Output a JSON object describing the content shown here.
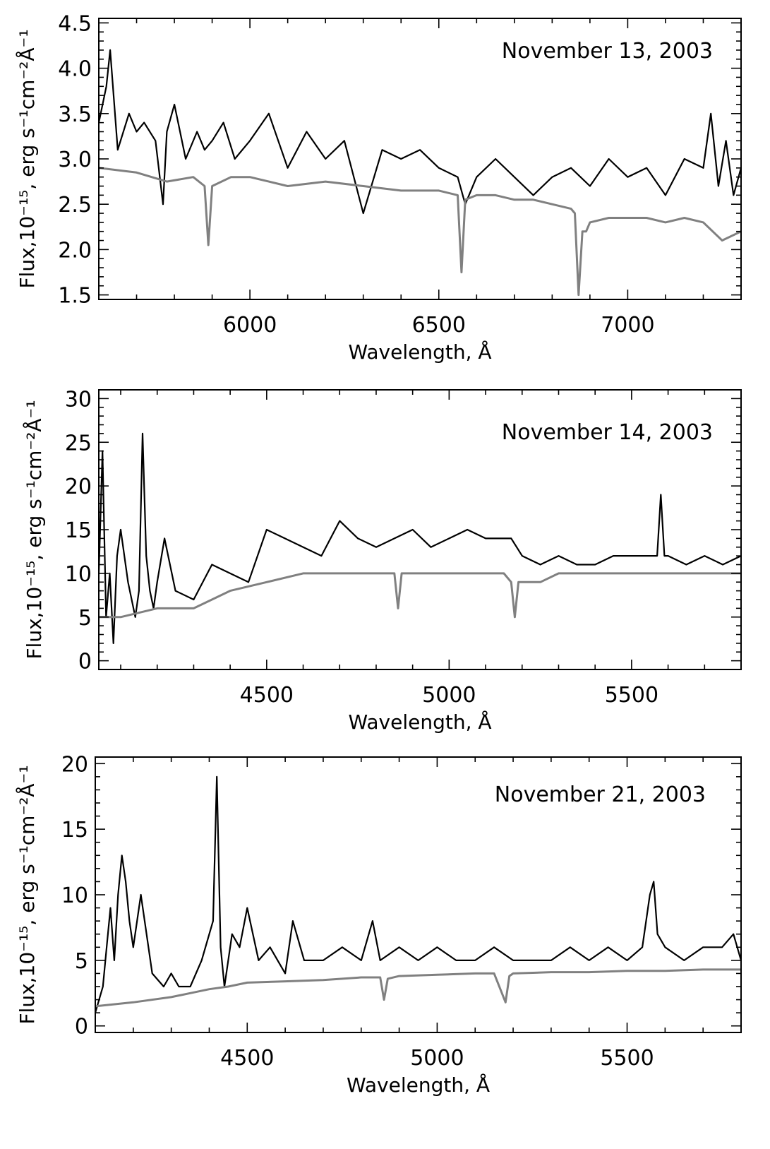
{
  "chart_data": [
    {
      "type": "line",
      "title": "November 13, 2003",
      "xlabel": "Wavelength, Å",
      "ylabel": "Flux,10⁻¹⁵, erg s⁻¹cm⁻²Å⁻¹",
      "xlim": [
        5600,
        7300
      ],
      "ylim": [
        1.45,
        4.55
      ],
      "xticks": [
        6000,
        6500,
        7000
      ],
      "yticks": [
        1.5,
        2.0,
        2.5,
        3.0,
        3.5,
        4.0,
        4.5
      ],
      "ytick_decimals": 1,
      "series": [
        {
          "color": "#000000",
          "x": [
            5600,
            5620,
            5630,
            5650,
            5680,
            5700,
            5720,
            5750,
            5770,
            5780,
            5800,
            5830,
            5860,
            5880,
            5900,
            5930,
            5960,
            6000,
            6050,
            6100,
            6150,
            6200,
            6250,
            6300,
            6350,
            6400,
            6450,
            6500,
            6550,
            6570,
            6600,
            6650,
            6700,
            6750,
            6800,
            6850,
            6900,
            6950,
            7000,
            7050,
            7100,
            7150,
            7200,
            7220,
            7240,
            7260,
            7280,
            7300
          ],
          "y": [
            3.4,
            3.8,
            4.2,
            3.1,
            3.5,
            3.3,
            3.4,
            3.2,
            2.5,
            3.3,
            3.6,
            3.0,
            3.3,
            3.1,
            3.2,
            3.4,
            3.0,
            3.2,
            3.5,
            2.9,
            3.3,
            3.0,
            3.2,
            2.4,
            3.1,
            3.0,
            3.1,
            2.9,
            2.8,
            2.5,
            2.8,
            3.0,
            2.8,
            2.6,
            2.8,
            2.9,
            2.7,
            3.0,
            2.8,
            2.9,
            2.6,
            3.0,
            2.9,
            3.5,
            2.7,
            3.2,
            2.6,
            2.9
          ]
        },
        {
          "color": "#808080",
          "x": [
            5600,
            5700,
            5780,
            5850,
            5880,
            5890,
            5900,
            5950,
            6000,
            6050,
            6100,
            6200,
            6300,
            6400,
            6500,
            6550,
            6560,
            6570,
            6600,
            6650,
            6700,
            6750,
            6800,
            6850,
            6860,
            6870,
            6880,
            6890,
            6900,
            6950,
            7000,
            7050,
            7100,
            7150,
            7200,
            7250,
            7300
          ],
          "y": [
            2.9,
            2.85,
            2.75,
            2.8,
            2.7,
            2.05,
            2.7,
            2.8,
            2.8,
            2.75,
            2.7,
            2.75,
            2.7,
            2.65,
            2.65,
            2.6,
            1.75,
            2.55,
            2.6,
            2.6,
            2.55,
            2.55,
            2.5,
            2.45,
            2.4,
            1.5,
            2.2,
            2.2,
            2.3,
            2.35,
            2.35,
            2.35,
            2.3,
            2.35,
            2.3,
            2.1,
            2.2
          ]
        }
      ]
    },
    {
      "type": "line",
      "title": "November 14, 2003",
      "xlabel": "Wavelength, Å",
      "ylabel": "Flux,10⁻¹⁵, erg s⁻¹cm⁻²Å⁻¹",
      "xlim": [
        4040,
        5800
      ],
      "ylim": [
        -1,
        31
      ],
      "xticks": [
        4500,
        5000,
        5500
      ],
      "yticks": [
        0,
        5,
        10,
        15,
        20,
        25,
        30
      ],
      "ytick_decimals": 0,
      "series": [
        {
          "color": "#000000",
          "x": [
            4040,
            4050,
            4060,
            4070,
            4080,
            4090,
            4100,
            4120,
            4140,
            4150,
            4160,
            4170,
            4180,
            4190,
            4200,
            4220,
            4250,
            4300,
            4350,
            4400,
            4450,
            4500,
            4550,
            4600,
            4650,
            4700,
            4750,
            4800,
            4850,
            4900,
            4950,
            5000,
            5050,
            5100,
            5150,
            5170,
            5200,
            5250,
            5300,
            5350,
            5400,
            5450,
            5500,
            5550,
            5570,
            5580,
            5590,
            5600,
            5650,
            5700,
            5750,
            5800
          ],
          "y": [
            10,
            24,
            5,
            10,
            2,
            12,
            15,
            9,
            5,
            8,
            26,
            12,
            8,
            6,
            9,
            14,
            8,
            7,
            11,
            10,
            9,
            15,
            14,
            13,
            12,
            16,
            14,
            13,
            14,
            15,
            13,
            14,
            15,
            14,
            14,
            14,
            12,
            11,
            12,
            11,
            11,
            12,
            12,
            12,
            12,
            19,
            12,
            12,
            11,
            12,
            11,
            12
          ]
        },
        {
          "color": "#808080",
          "x": [
            4040,
            4100,
            4200,
            4300,
            4350,
            4400,
            4500,
            4600,
            4700,
            4800,
            4850,
            4860,
            4870,
            4900,
            5000,
            5100,
            5150,
            5170,
            5180,
            5190,
            5250,
            5300,
            5400,
            5500,
            5600,
            5700,
            5800
          ],
          "y": [
            5,
            5,
            6,
            6,
            7,
            8,
            9,
            10,
            10,
            10,
            10,
            6,
            10,
            10,
            10,
            10,
            10,
            9,
            5,
            9,
            9,
            10,
            10,
            10,
            10,
            10,
            10
          ]
        }
      ]
    },
    {
      "type": "line",
      "title": "November 21, 2003",
      "xlabel": "Wavelength, Å",
      "ylabel": "Flux,10⁻¹⁵, erg s⁻¹cm⁻²Å⁻¹",
      "xlim": [
        4100,
        5800
      ],
      "ylim": [
        -0.5,
        20.5
      ],
      "xticks": [
        4500,
        5000,
        5500
      ],
      "yticks": [
        0,
        5,
        10,
        15,
        20
      ],
      "ytick_decimals": 0,
      "series": [
        {
          "color": "#000000",
          "x": [
            4100,
            4110,
            4120,
            4130,
            4140,
            4150,
            4160,
            4170,
            4180,
            4190,
            4200,
            4220,
            4250,
            4280,
            4300,
            4320,
            4350,
            4380,
            4400,
            4410,
            4420,
            4430,
            4440,
            4460,
            4480,
            4500,
            4530,
            4560,
            4600,
            4620,
            4650,
            4700,
            4750,
            4800,
            4830,
            4850,
            4900,
            4950,
            5000,
            5050,
            5100,
            5150,
            5200,
            5250,
            5300,
            5350,
            5400,
            5450,
            5500,
            5540,
            5560,
            5570,
            5580,
            5600,
            5650,
            5700,
            5750,
            5780,
            5800
          ],
          "y": [
            1,
            2,
            3,
            6,
            9,
            5,
            10,
            13,
            11,
            8,
            6,
            10,
            4,
            3,
            4,
            3,
            3,
            5,
            7,
            8,
            19,
            6,
            3,
            7,
            6,
            9,
            5,
            6,
            4,
            8,
            5,
            5,
            6,
            5,
            8,
            5,
            6,
            5,
            6,
            5,
            5,
            6,
            5,
            5,
            5,
            6,
            5,
            6,
            5,
            6,
            10,
            11,
            7,
            6,
            5,
            6,
            6,
            7,
            5
          ]
        },
        {
          "color": "#808080",
          "x": [
            4100,
            4200,
            4300,
            4350,
            4400,
            4450,
            4500,
            4600,
            4700,
            4800,
            4850,
            4860,
            4870,
            4900,
            5000,
            5100,
            5150,
            5180,
            5190,
            5200,
            5300,
            5400,
            5500,
            5600,
            5700,
            5800
          ],
          "y": [
            1.5,
            1.8,
            2.2,
            2.5,
            2.8,
            3.0,
            3.3,
            3.4,
            3.5,
            3.7,
            3.7,
            2.0,
            3.6,
            3.8,
            3.9,
            4.0,
            4.0,
            1.8,
            3.8,
            4.0,
            4.1,
            4.1,
            4.2,
            4.2,
            4.3,
            4.3
          ]
        }
      ]
    }
  ]
}
